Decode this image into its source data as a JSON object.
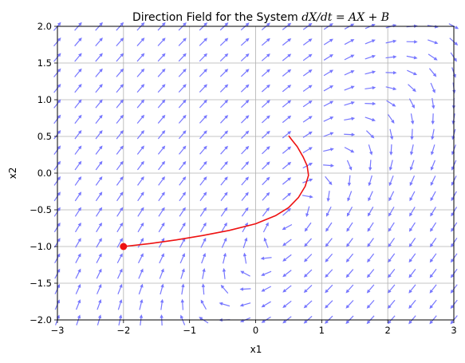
{
  "chart_data": {
    "type": "direction-field",
    "title_text": "Direction Field for the System ",
    "title_math": "dX/dt = AX + B",
    "xlabel": "x1",
    "ylabel": "x2",
    "xlim": [
      -3,
      3
    ],
    "ylim": [
      -2,
      2
    ],
    "grid": true,
    "x_ticks": [
      -3,
      -2,
      -1,
      0,
      1,
      2,
      3
    ],
    "y_ticks": [
      -2.0,
      -1.5,
      -1.0,
      -0.5,
      0.0,
      0.5,
      1.0,
      1.5,
      2.0
    ],
    "x_tick_labels": [
      "−3",
      "−2",
      "−1",
      "0",
      "1",
      "2",
      "3"
    ],
    "y_tick_labels": [
      "−2.0",
      "−1.5",
      "−1.0",
      "−0.5",
      "0.0",
      "0.5",
      "1.0",
      "1.5",
      "2.0"
    ],
    "field": {
      "color": "#7777ff",
      "nx": 20,
      "ny": 20,
      "A": [
        [
          -1.0,
          1.5
        ],
        [
          -1.6,
          1.2
        ]
      ],
      "B": [
        1.5,
        1.6
      ]
    },
    "trajectory": {
      "color": "#ee1111",
      "start_point": [
        -2.0,
        -1.0
      ],
      "points": [
        [
          -2.0,
          -1.0
        ],
        [
          -1.6,
          -0.96
        ],
        [
          -1.2,
          -0.91
        ],
        [
          -0.8,
          -0.85
        ],
        [
          -0.4,
          -0.78
        ],
        [
          0.0,
          -0.69
        ],
        [
          0.3,
          -0.58
        ],
        [
          0.5,
          -0.47
        ],
        [
          0.65,
          -0.33
        ],
        [
          0.75,
          -0.18
        ],
        [
          0.8,
          -0.03
        ],
        [
          0.78,
          0.1
        ],
        [
          0.72,
          0.22
        ],
        [
          0.63,
          0.36
        ],
        [
          0.55,
          0.45
        ],
        [
          0.5,
          0.51
        ]
      ]
    }
  }
}
